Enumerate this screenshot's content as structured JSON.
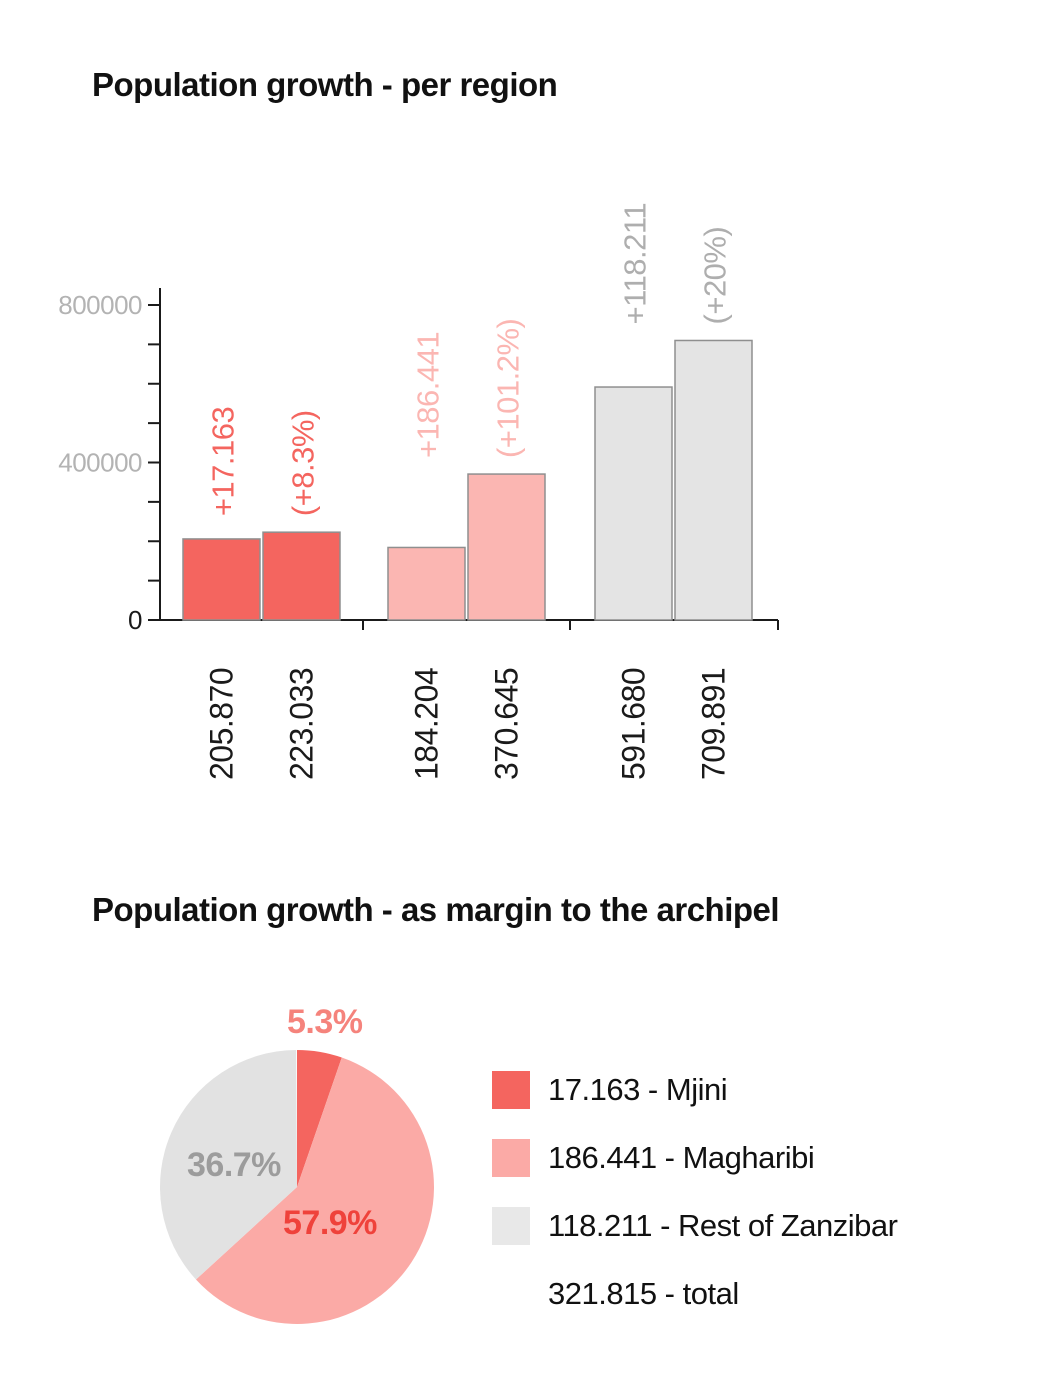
{
  "page": {
    "background": "#ffffff"
  },
  "chart_data": [
    {
      "type": "bar",
      "title": "Population growth - per region",
      "xlabel": "",
      "ylabel": "",
      "ylim": [
        0,
        800000
      ],
      "minor_tick_step": 100000,
      "axis_color": "#1a1a1a",
      "bar_label_color": "#1a1a1a",
      "yticks": [
        {
          "value": 0,
          "label": "0",
          "color": "#1a1a1a"
        },
        {
          "value": 400000,
          "label": "400000",
          "color": "#b3b3b3"
        },
        {
          "value": 800000,
          "label": "800000",
          "color": "#b3b3b3"
        }
      ],
      "groups": [
        {
          "name": "Mjini",
          "values": [
            205870,
            223033
          ],
          "bar_labels": [
            "205.870",
            "223.033"
          ],
          "delta_label": "+17.163",
          "pct_label": "(+8.3%)",
          "fill": "#f4655f",
          "stroke": "#8f8f8f",
          "annotation_color": "#f4655f"
        },
        {
          "name": "Magharibi",
          "values": [
            184204,
            370645
          ],
          "bar_labels": [
            "184.204",
            "370.645"
          ],
          "delta_label": "+186.441",
          "pct_label": "(+101.2%)",
          "fill": "#fbb6b2",
          "stroke": "#8f8f8f",
          "annotation_color": "#fbb6b2"
        },
        {
          "name": "Rest of Zanzibar",
          "values": [
            591680,
            709891
          ],
          "bar_labels": [
            "591.680",
            "709.891"
          ],
          "delta_label": "+118.211",
          "pct_label": "(+20%)",
          "fill": "#e4e4e4",
          "stroke": "#8f8f8f",
          "annotation_color": "#aeaeae"
        }
      ]
    },
    {
      "type": "pie",
      "title": "Population growth - as margin to the archipel",
      "slices": [
        {
          "label": "5.3%",
          "value": 5.3,
          "color": "#f4655f",
          "label_color": "#f5837c"
        },
        {
          "label": "57.9%",
          "value": 57.9,
          "color": "#fbaaa6",
          "label_color": "#ef423b"
        },
        {
          "label": "36.7%",
          "value": 36.7,
          "color": "#e2e2e2",
          "label_color": "#9c9c9c"
        }
      ],
      "legend": [
        {
          "label": "17.163 - Mjini",
          "color": "#f4655f"
        },
        {
          "label": "186.441 - Magharibi",
          "color": "#fbaaa6"
        },
        {
          "label": "118.211 - Rest of Zanzibar",
          "color": "#e8e8e8"
        },
        {
          "label": "321.815 - total",
          "color": null
        }
      ]
    }
  ]
}
